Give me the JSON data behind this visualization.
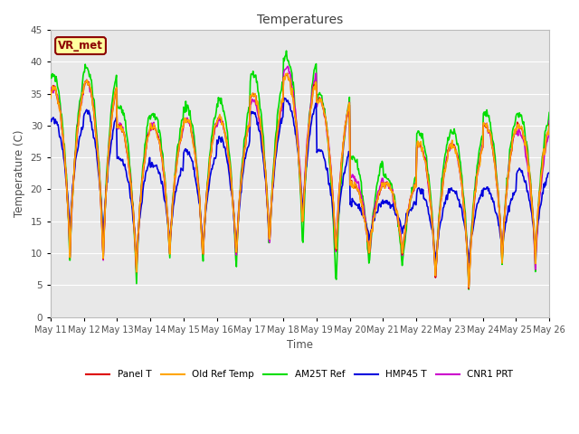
{
  "title": "Temperatures",
  "xlabel": "Time",
  "ylabel": "Temperature (C)",
  "ylim": [
    0,
    45
  ],
  "annotation_text": "VR_met",
  "annotation_box_color": "#FFFFA0",
  "annotation_box_edge": "#8B0000",
  "background_color": "#E8E8E8",
  "plot_bg_bands": [
    {
      "ymin": 35,
      "ymax": 45,
      "color": "#FFFFFF"
    },
    {
      "ymin": 25,
      "ymax": 35,
      "color": "#EBEBEB"
    },
    {
      "ymin": 15,
      "ymax": 25,
      "color": "#FFFFFF"
    },
    {
      "ymin": 5,
      "ymax": 15,
      "color": "#EBEBEB"
    },
    {
      "ymin": 0,
      "ymax": 5,
      "color": "#FFFFFF"
    }
  ],
  "series": {
    "Panel T": {
      "color": "#DD0000",
      "lw": 1.2
    },
    "Old Ref Temp": {
      "color": "#FFA500",
      "lw": 1.2
    },
    "AM25T Ref": {
      "color": "#00DD00",
      "lw": 1.2
    },
    "HMP45 T": {
      "color": "#0000DD",
      "lw": 1.2
    },
    "CNR1 PRT": {
      "color": "#CC00CC",
      "lw": 1.2
    }
  },
  "grid_color": "#FFFFFF",
  "tick_label_color": "#505050",
  "axis_label_color": "#505050",
  "title_color": "#404040",
  "date_ticks": [
    "May 11",
    "May 12",
    "May 13",
    "May 14",
    "May 15",
    "May 16",
    "May 17",
    "May 18",
    "May 19",
    "May 20",
    "May 21",
    "May 22",
    "May 23",
    "May 24",
    "May 25",
    "May 26"
  ]
}
